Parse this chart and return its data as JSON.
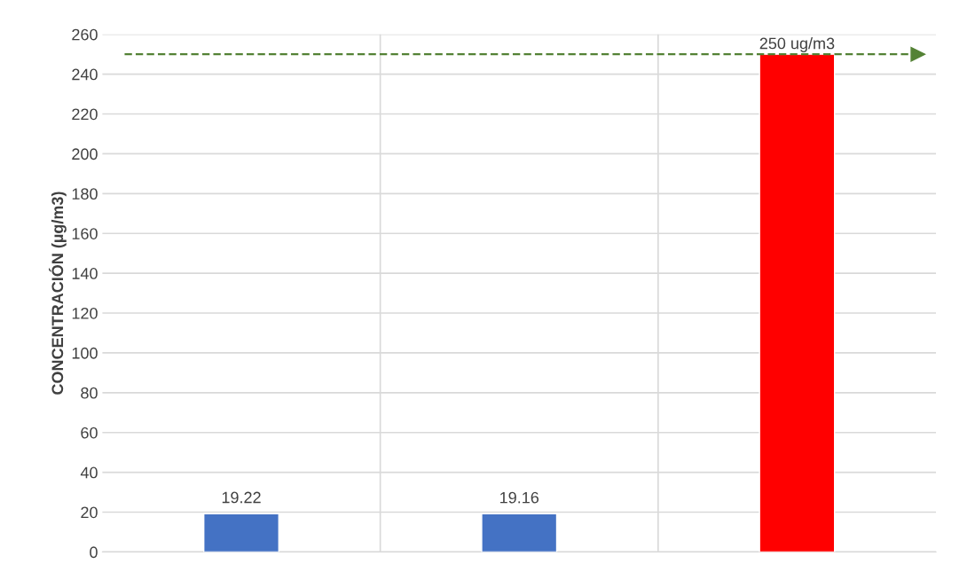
{
  "chart_data": {
    "type": "bar",
    "ylabel": "CONCENTRACIÓN (µg/m3)",
    "categories": [
      null,
      null,
      null
    ],
    "values": [
      19.22,
      19.16,
      250
    ],
    "colors": [
      "#4472c4",
      "#4472c4",
      "#ff0000"
    ],
    "value_labels": [
      "19.22",
      "19.16",
      null
    ],
    "ylim": [
      0,
      260
    ],
    "yticks": [
      0,
      20,
      40,
      60,
      80,
      100,
      120,
      140,
      160,
      180,
      200,
      220,
      240,
      260
    ],
    "grid": true,
    "ref_lines": [
      {
        "axis": "y",
        "value": 250,
        "label": "250 ug/m3",
        "color": "#548235",
        "line_style": "dashed"
      }
    ]
  }
}
